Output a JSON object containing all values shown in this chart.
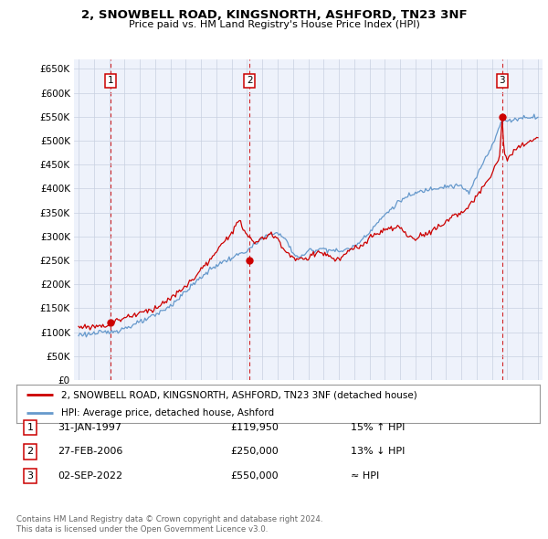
{
  "title": "2, SNOWBELL ROAD, KINGSNORTH, ASHFORD, TN23 3NF",
  "subtitle": "Price paid vs. HM Land Registry's House Price Index (HPI)",
  "ytick_labels": [
    "£0",
    "£50K",
    "£100K",
    "£150K",
    "£200K",
    "£250K",
    "£300K",
    "£350K",
    "£400K",
    "£450K",
    "£500K",
    "£550K",
    "£600K",
    "£650K"
  ],
  "ytick_values": [
    0,
    50000,
    100000,
    150000,
    200000,
    250000,
    300000,
    350000,
    400000,
    450000,
    500000,
    550000,
    600000,
    650000
  ],
  "ylim": [
    0,
    670000
  ],
  "xlim_start": 1994.7,
  "xlim_end": 2025.3,
  "sale_color": "#cc0000",
  "hpi_color": "#6699cc",
  "grid_color": "#c8d0e0",
  "background_color": "#ffffff",
  "plot_bg_color": "#eef2fb",
  "transactions": [
    {
      "num": 1,
      "date": "31-JAN-1997",
      "price": 119950,
      "year": 1997.08,
      "hpi_rel": "15% ↑ HPI"
    },
    {
      "num": 2,
      "date": "27-FEB-2006",
      "price": 250000,
      "year": 2006.16,
      "hpi_rel": "13% ↓ HPI"
    },
    {
      "num": 3,
      "date": "02-SEP-2022",
      "price": 550000,
      "year": 2022.67,
      "hpi_rel": "≈ HPI"
    }
  ],
  "legend_line1": "2, SNOWBELL ROAD, KINGSNORTH, ASHFORD, TN23 3NF (detached house)",
  "legend_line2": "HPI: Average price, detached house, Ashford",
  "footer1": "Contains HM Land Registry data © Crown copyright and database right 2024.",
  "footer2": "This data is licensed under the Open Government Licence v3.0.",
  "hpi_key_points": {
    "1995.0": 95000,
    "1996.0": 97000,
    "1997.0": 100000,
    "1998.0": 108000,
    "1999.0": 120000,
    "2000.0": 135000,
    "2001.0": 155000,
    "2002.0": 185000,
    "2003.0": 215000,
    "2004.0": 240000,
    "2005.0": 255000,
    "2006.0": 270000,
    "2007.0": 295000,
    "2007.8": 310000,
    "2008.5": 295000,
    "2009.0": 265000,
    "2009.5": 255000,
    "2010.0": 270000,
    "2011.0": 275000,
    "2012.0": 268000,
    "2013.0": 278000,
    "2014.0": 310000,
    "2015.0": 345000,
    "2016.0": 375000,
    "2017.0": 390000,
    "2018.0": 400000,
    "2019.0": 405000,
    "2020.0": 405000,
    "2020.5": 390000,
    "2021.0": 425000,
    "2021.5": 460000,
    "2022.0": 490000,
    "2022.5": 530000,
    "2022.8": 545000,
    "2023.0": 540000,
    "2023.5": 545000,
    "2024.0": 548000,
    "2024.5": 550000,
    "2025.0": 550000
  },
  "prop_key_points": {
    "1995.0": 110000,
    "1996.0": 112000,
    "1997.0": 115000,
    "1997.5": 125000,
    "1998.0": 130000,
    "1999.0": 140000,
    "2000.0": 150000,
    "2001.0": 170000,
    "2002.0": 195000,
    "2003.0": 230000,
    "2004.0": 265000,
    "2004.5": 290000,
    "2005.0": 310000,
    "2005.5": 330000,
    "2006.0": 305000,
    "2006.5": 285000,
    "2007.0": 295000,
    "2007.5": 305000,
    "2008.0": 295000,
    "2008.5": 270000,
    "2009.0": 255000,
    "2009.5": 250000,
    "2010.0": 255000,
    "2010.5": 268000,
    "2011.0": 265000,
    "2011.5": 255000,
    "2012.0": 250000,
    "2012.5": 265000,
    "2013.0": 275000,
    "2013.5": 280000,
    "2014.0": 295000,
    "2014.5": 305000,
    "2015.0": 315000,
    "2015.5": 315000,
    "2016.0": 320000,
    "2016.5": 300000,
    "2017.0": 295000,
    "2017.5": 305000,
    "2018.0": 310000,
    "2018.5": 320000,
    "2019.0": 330000,
    "2019.5": 345000,
    "2020.0": 350000,
    "2020.5": 360000,
    "2021.0": 385000,
    "2021.5": 405000,
    "2022.0": 430000,
    "2022.5": 470000,
    "2022.67": 550000,
    "2022.8": 470000,
    "2023.0": 460000,
    "2023.5": 480000,
    "2024.0": 490000,
    "2024.5": 500000,
    "2025.0": 505000
  }
}
